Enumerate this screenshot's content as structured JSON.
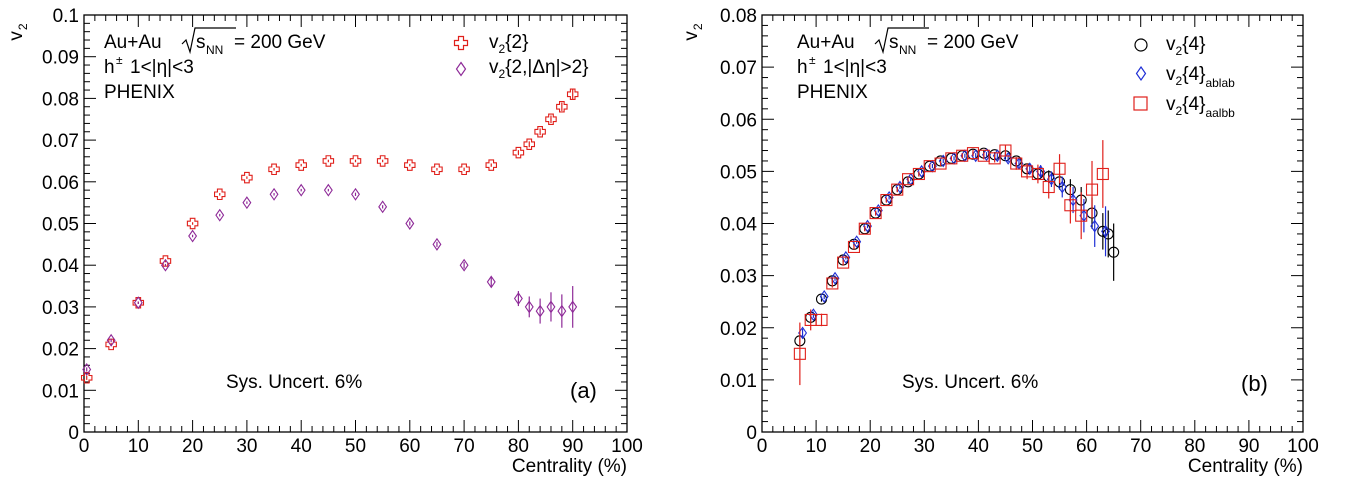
{
  "chart_data": [
    {
      "type": "scatter",
      "panel_label": "(a)",
      "xlabel": "Centrality (%)",
      "ylabel": "v",
      "ylabel_sub": "2",
      "xlim": [
        0,
        100
      ],
      "ylim": [
        0,
        0.1
      ],
      "x_ticks": [
        "0",
        "10",
        "20",
        "30",
        "40",
        "50",
        "60",
        "70",
        "80",
        "90",
        "100"
      ],
      "y_ticks": [
        "0",
        "0.01",
        "0.02",
        "0.03",
        "0.04",
        "0.05",
        "0.06",
        "0.07",
        "0.08",
        "0.09",
        "0.1"
      ],
      "grid": false,
      "annotations": {
        "system": "Au+Au",
        "energy": "= 200 GeV",
        "selection": "1<|η|<3",
        "experiment": "PHENIX",
        "sys_uncert": "Sys. Uncert. 6%"
      },
      "legend_position": "top-right",
      "series": [
        {
          "name": "v2{2}",
          "legend_main": "{2}",
          "marker": "open-cross",
          "color": "#e0201b",
          "x": [
            0.5,
            5,
            10,
            15,
            20,
            25,
            30,
            35,
            40,
            45,
            50,
            55,
            60,
            65,
            70,
            75,
            80,
            82,
            84,
            86,
            88,
            90
          ],
          "y": [
            0.013,
            0.021,
            0.031,
            0.041,
            0.05,
            0.057,
            0.061,
            0.063,
            0.064,
            0.065,
            0.065,
            0.065,
            0.064,
            0.063,
            0.063,
            0.064,
            0.067,
            0.069,
            0.072,
            0.075,
            0.078,
            0.081
          ],
          "yerr": [
            0.0005,
            0.0004,
            0.0003,
            0.0003,
            0.0003,
            0.0003,
            0.0003,
            0.0003,
            0.0003,
            0.0003,
            0.0003,
            0.0003,
            0.0003,
            0.0003,
            0.0004,
            0.0004,
            0.0006,
            0.0007,
            0.0008,
            0.0009,
            0.001,
            0.0012
          ]
        },
        {
          "name": "v2{2,|Δη|>2}",
          "legend_main": "{2,|Δη|>2}",
          "marker": "open-diamond",
          "color": "#8e2a98",
          "x": [
            0.5,
            5,
            10,
            15,
            20,
            25,
            30,
            35,
            40,
            45,
            50,
            55,
            60,
            65,
            70,
            75,
            80,
            82,
            84,
            86,
            88,
            90
          ],
          "y": [
            0.015,
            0.022,
            0.031,
            0.04,
            0.047,
            0.052,
            0.055,
            0.057,
            0.058,
            0.058,
            0.057,
            0.054,
            0.05,
            0.045,
            0.04,
            0.036,
            0.032,
            0.03,
            0.029,
            0.03,
            0.029,
            0.03
          ],
          "yerr": [
            0.0005,
            0.0004,
            0.0003,
            0.0003,
            0.0003,
            0.0003,
            0.0003,
            0.0003,
            0.0003,
            0.0003,
            0.0004,
            0.0004,
            0.0005,
            0.0006,
            0.0008,
            0.0012,
            0.0018,
            0.0025,
            0.003,
            0.0035,
            0.004,
            0.005
          ]
        }
      ]
    },
    {
      "type": "scatter",
      "panel_label": "(b)",
      "xlabel": "Centrality (%)",
      "ylabel": "v",
      "ylabel_sub": "2",
      "xlim": [
        0,
        100
      ],
      "ylim": [
        0,
        0.08
      ],
      "x_ticks": [
        "0",
        "10",
        "20",
        "30",
        "40",
        "50",
        "60",
        "70",
        "80",
        "90",
        "100"
      ],
      "y_ticks": [
        "0",
        "0.01",
        "0.02",
        "0.03",
        "0.04",
        "0.05",
        "0.06",
        "0.07",
        "0.08"
      ],
      "grid": false,
      "annotations": {
        "system": "Au+Au",
        "energy": "= 200 GeV",
        "selection": "1<|η|<3",
        "experiment": "PHENIX",
        "sys_uncert": "Sys. Uncert. 6%"
      },
      "legend_position": "top-right",
      "series": [
        {
          "name": "v2{4}",
          "legend_main": "{4}",
          "legend_sub2": "",
          "marker": "open-circle",
          "color": "#000000",
          "x": [
            7,
            9,
            11,
            13,
            15,
            17,
            19,
            21,
            23,
            25,
            27,
            29,
            31,
            33,
            35,
            37,
            39,
            41,
            43,
            45,
            47,
            49,
            51,
            53,
            55,
            57,
            59,
            61,
            63,
            64,
            65
          ],
          "y": [
            0.0175,
            0.022,
            0.0255,
            0.029,
            0.033,
            0.036,
            0.039,
            0.042,
            0.0445,
            0.0465,
            0.048,
            0.0495,
            0.051,
            0.052,
            0.0525,
            0.053,
            0.0533,
            0.0535,
            0.0532,
            0.053,
            0.052,
            0.0505,
            0.0495,
            0.049,
            0.048,
            0.0465,
            0.0445,
            0.042,
            0.0385,
            0.038,
            0.0345
          ],
          "yerr": [
            0.0008,
            0.0006,
            0.0005,
            0.0005,
            0.0004,
            0.0004,
            0.0004,
            0.0004,
            0.0004,
            0.0004,
            0.0004,
            0.0004,
            0.0004,
            0.0004,
            0.0004,
            0.0004,
            0.0004,
            0.0005,
            0.0005,
            0.0006,
            0.0007,
            0.0008,
            0.001,
            0.0012,
            0.0015,
            0.002,
            0.0025,
            0.003,
            0.0035,
            0.0045,
            0.0055
          ]
        },
        {
          "name": "v2{4}ablab",
          "legend_main": "{4}",
          "legend_sub2": "ablab",
          "marker": "open-diamond",
          "color": "#1f2fd6",
          "x": [
            7.5,
            9.5,
            11.5,
            13.5,
            15.5,
            17.5,
            19.5,
            21.5,
            23.5,
            25.5,
            27.5,
            29.5,
            31.5,
            33.5,
            35.5,
            37.5,
            39.5,
            41.5,
            43.5,
            45.5,
            47.5,
            49.5,
            51.5,
            53.5,
            55.5,
            57.5,
            59.5,
            61.5,
            63.5
          ],
          "y": [
            0.019,
            0.0225,
            0.026,
            0.0295,
            0.0335,
            0.0365,
            0.0395,
            0.0425,
            0.045,
            0.047,
            0.0485,
            0.05,
            0.051,
            0.052,
            0.0525,
            0.053,
            0.053,
            0.0532,
            0.053,
            0.0525,
            0.0515,
            0.0505,
            0.05,
            0.0485,
            0.047,
            0.0445,
            0.0415,
            0.0395,
            0.0385
          ],
          "yerr": [
            0.0008,
            0.0006,
            0.0005,
            0.0005,
            0.0004,
            0.0004,
            0.0004,
            0.0004,
            0.0004,
            0.0004,
            0.0004,
            0.0004,
            0.0004,
            0.0004,
            0.0004,
            0.0004,
            0.0005,
            0.0005,
            0.0006,
            0.0007,
            0.0008,
            0.001,
            0.0012,
            0.0015,
            0.002,
            0.0025,
            0.0032,
            0.004,
            0.0048
          ]
        },
        {
          "name": "v2{4}aalbb",
          "legend_main": "{4}",
          "legend_sub2": "aalbb",
          "marker": "open-square",
          "color": "#e0201b",
          "x": [
            7,
            9,
            11,
            13,
            15,
            17,
            19,
            21,
            23,
            25,
            27,
            29,
            31,
            33,
            35,
            37,
            39,
            41,
            43,
            45,
            47,
            49,
            51,
            53,
            55,
            57,
            59,
            61,
            63
          ],
          "y": [
            0.015,
            0.0215,
            0.0215,
            0.0285,
            0.0325,
            0.0355,
            0.039,
            0.042,
            0.0445,
            0.0465,
            0.0485,
            0.0495,
            0.051,
            0.0515,
            0.0525,
            0.053,
            0.0535,
            0.053,
            0.0525,
            0.054,
            0.0515,
            0.05,
            0.0495,
            0.047,
            0.0505,
            0.0435,
            0.0415,
            0.0465,
            0.0495
          ],
          "yerr": [
            0.006,
            0.002,
            0.0012,
            0.0008,
            0.0006,
            0.0005,
            0.0005,
            0.0005,
            0.0005,
            0.0005,
            0.0005,
            0.0005,
            0.0005,
            0.0005,
            0.0005,
            0.0005,
            0.0006,
            0.0007,
            0.0008,
            0.001,
            0.0012,
            0.0015,
            0.0018,
            0.0022,
            0.0028,
            0.0035,
            0.0045,
            0.0055,
            0.0065
          ]
        }
      ]
    }
  ]
}
